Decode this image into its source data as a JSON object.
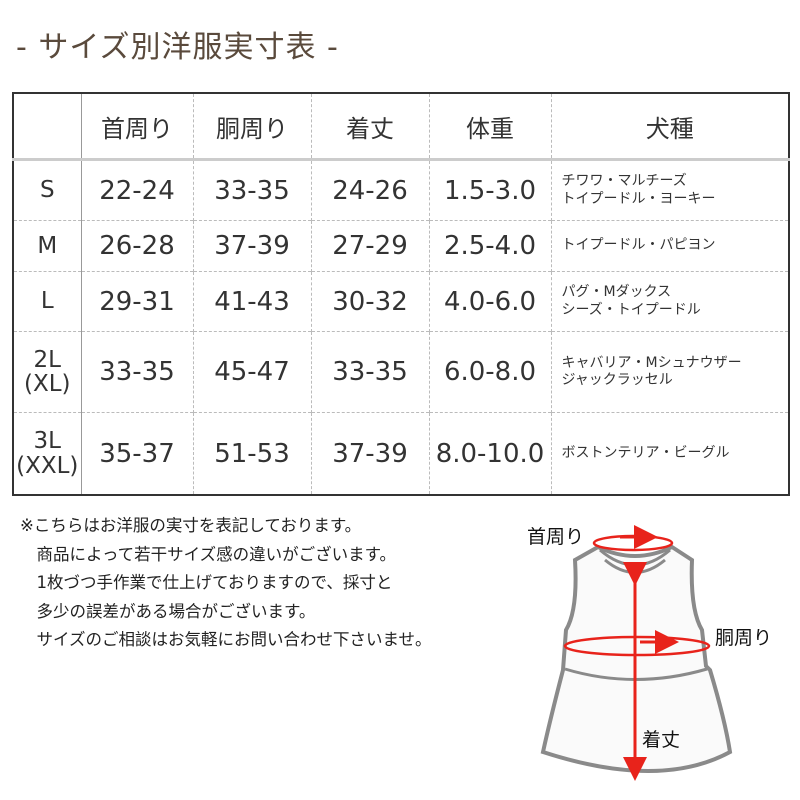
{
  "title": "- サイズ別洋服実寸表 -",
  "table": {
    "headers": [
      "",
      "首周り",
      "胴周り",
      "着丈",
      "体重",
      "犬種"
    ],
    "rows": [
      {
        "size": "S",
        "neck": "22-24",
        "chest": "33-35",
        "length": "24-26",
        "weight": "1.5-3.0",
        "breeds": [
          "チワワ・マルチーズ",
          "トイプードル・ヨーキー"
        ]
      },
      {
        "size": "M",
        "neck": "26-28",
        "chest": "37-39",
        "length": "27-29",
        "weight": "2.5-4.0",
        "breeds": [
          "トイプードル・パピヨン"
        ]
      },
      {
        "size": "L",
        "neck": "29-31",
        "chest": "41-43",
        "length": "30-32",
        "weight": "4.0-6.0",
        "breeds": [
          "パグ・Mダックス",
          "シーズ・トイプードル"
        ]
      },
      {
        "size": "2L\n(XL)",
        "size_a": "2L",
        "size_b": "(XL)",
        "neck": "33-35",
        "chest": "45-47",
        "length": "33-35",
        "weight": "6.0-8.0",
        "breeds": [
          "キャバリア・Mシュナウザー",
          "ジャックラッセル"
        ]
      },
      {
        "size_a": "3L",
        "size_b": "(XXL)",
        "neck": "35-37",
        "chest": "51-53",
        "length": "37-39",
        "weight": "8.0-10.0",
        "breeds": [
          "ボストンテリア・ビーグル"
        ]
      }
    ]
  },
  "notes": [
    "※こちらはお洋服の実寸を表記しております。",
    "　商品によって若干サイズ感の違いがございます。",
    "　1枚づつ手作業で仕上げておりますので、採寸と",
    "　多少の誤差がある場合がございます。",
    "　サイズのご相談はお気軽にお問い合わせ下さいませ。"
  ],
  "diagram": {
    "neck_label": "首周り",
    "chest_label": "胴周り",
    "length_label": "着丈",
    "measure_color": "#e8231b",
    "outline_color": "#8a8a8a"
  }
}
